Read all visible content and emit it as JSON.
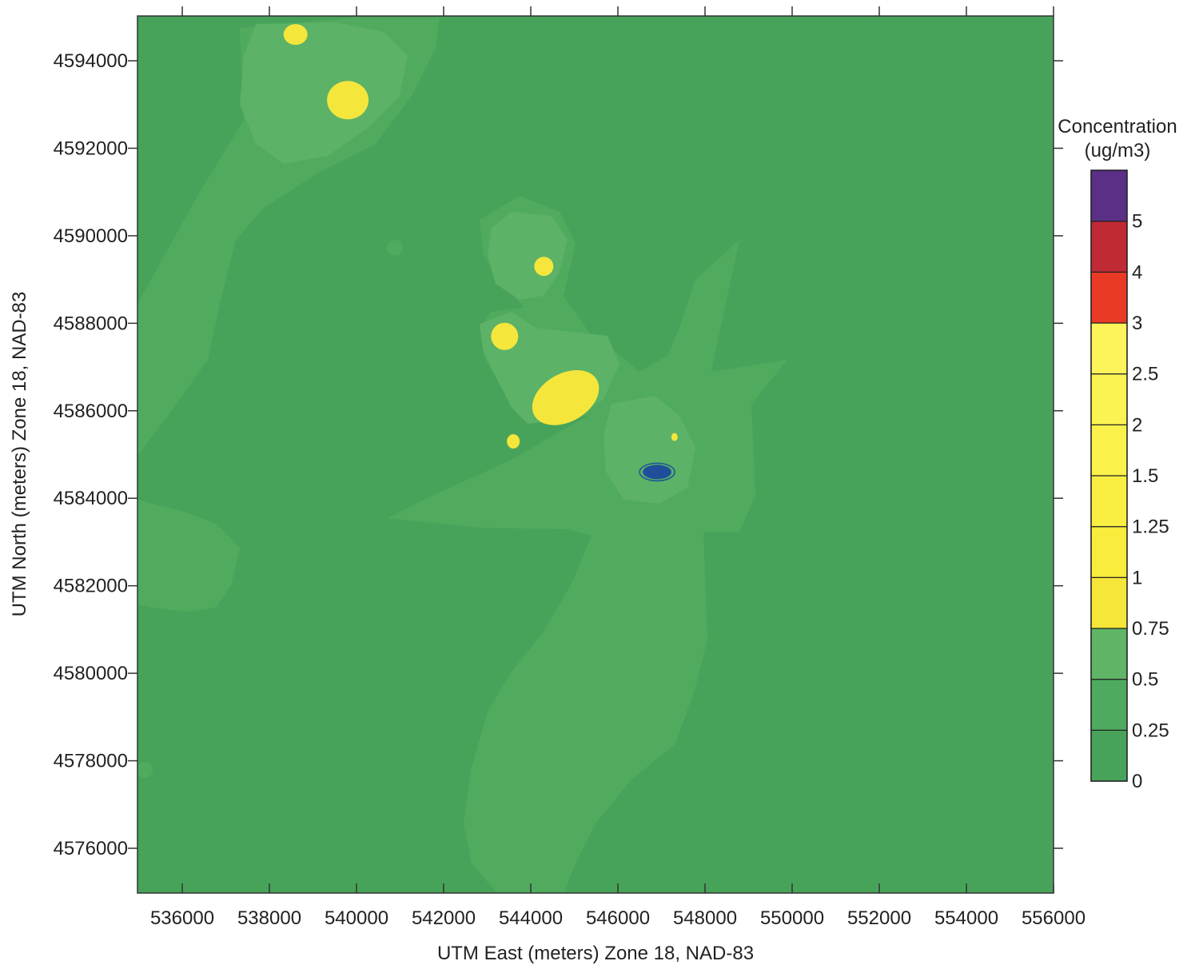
{
  "chart_data": {
    "type": "heatmap",
    "xlabel": "UTM East (meters) Zone 18, NAD-83",
    "ylabel": "UTM North (meters) Zone 18, NAD-83",
    "xlim": [
      535000,
      556000
    ],
    "ylim": [
      4575000,
      4595000
    ],
    "x_ticks": [
      536000,
      538000,
      540000,
      542000,
      544000,
      546000,
      548000,
      550000,
      552000,
      554000,
      556000
    ],
    "y_ticks": [
      4594000,
      4592000,
      4590000,
      4588000,
      4586000,
      4584000,
      4582000,
      4580000,
      4578000,
      4576000
    ],
    "x_tick_labels": [
      "536000",
      "538000",
      "540000",
      "542000",
      "544000",
      "546000",
      "548000",
      "550000",
      "552000",
      "554000",
      "556000"
    ],
    "y_tick_labels": [
      "4594000",
      "4592000",
      "4590000",
      "4588000",
      "4586000",
      "4584000",
      "4582000",
      "4580000",
      "4578000",
      "4576000"
    ],
    "legend": {
      "title_line1": "Concentration",
      "title_line2": "(ug/m3)",
      "levels": [
        "0",
        "0.25",
        "0.5",
        "0.75",
        "1",
        "1.25",
        "1.5",
        "2",
        "2.5",
        "3",
        "4",
        "5"
      ],
      "bands": [
        {
          "from": 0,
          "to": 0.25,
          "color": "#47a35a"
        },
        {
          "from": 0.25,
          "to": 0.5,
          "color": "#4eaa5e"
        },
        {
          "from": 0.5,
          "to": 0.75,
          "color": "#5fb466"
        },
        {
          "from": 0.75,
          "to": 1,
          "color": "#f6e63a"
        },
        {
          "from": 1,
          "to": 1.25,
          "color": "#f8ec3c"
        },
        {
          "from": 1.25,
          "to": 1.5,
          "color": "#f9ef42"
        },
        {
          "from": 1.5,
          "to": 2,
          "color": "#faf24a"
        },
        {
          "from": 2,
          "to": 2.5,
          "color": "#fbf352"
        },
        {
          "from": 2.5,
          "to": 3,
          "color": "#fcf45a"
        },
        {
          "from": 3,
          "to": 4,
          "color": "#ea3a25"
        },
        {
          "from": 4,
          "to": 5,
          "color": "#c02a35"
        },
        {
          "from": 5,
          "to": 6,
          "color": "#5b2f86"
        }
      ]
    },
    "colors": {
      "background": "#47a35a",
      "level1": "#50ab5f",
      "level2": "#5cb266",
      "hotspot": "#f5e63c",
      "source_marker": "#1f4f9a"
    },
    "hotspots_utm": [
      [
        538600,
        4594600
      ],
      [
        539800,
        4593100
      ],
      [
        544300,
        4589300
      ],
      [
        543400,
        4587700
      ],
      [
        544800,
        4586300
      ],
      [
        543600,
        4585300
      ],
      [
        547300,
        4585400
      ]
    ],
    "source_utm": [
      546900,
      4584600
    ]
  }
}
